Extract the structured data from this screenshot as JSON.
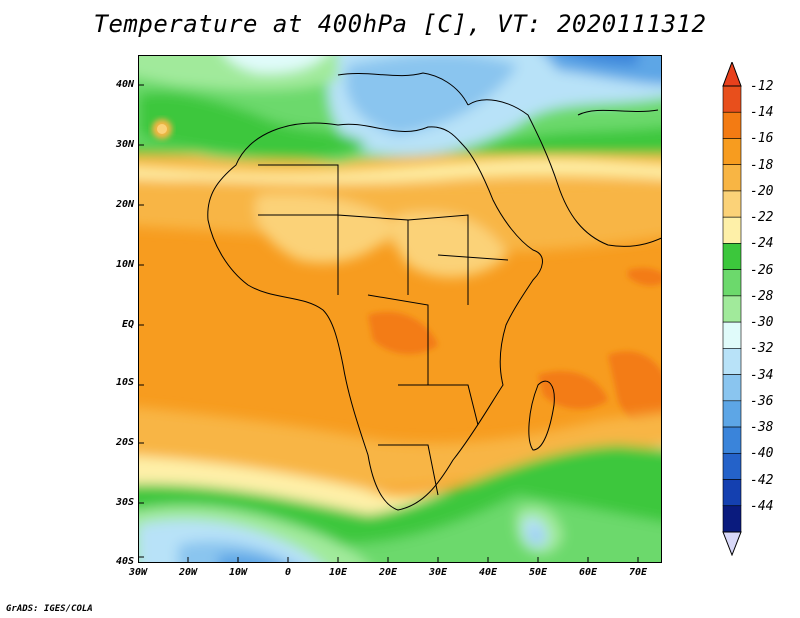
{
  "title": "Temperature at 400hPa [C], VT: 2020111312",
  "credit": "GrADS: IGES/COLA",
  "map": {
    "lat_labels": [
      "40N",
      "30N",
      "20N",
      "10N",
      "EQ",
      "10S",
      "20S",
      "30S",
      "40S"
    ],
    "lon_labels": [
      "30W",
      "20W",
      "10W",
      "0",
      "10E",
      "20E",
      "30E",
      "40E",
      "50E",
      "60E",
      "70E"
    ],
    "lat_range": [
      -40,
      45
    ],
    "lon_range": [
      -30,
      75
    ]
  },
  "colorbar": {
    "labels": [
      "-12",
      "-14",
      "-16",
      "-18",
      "-20",
      "-22",
      "-24",
      "-26",
      "-28",
      "-30",
      "-32",
      "-34",
      "-36",
      "-38",
      "-40",
      "-42",
      "-44"
    ],
    "colors": [
      "#e84f1c",
      "#f37b13",
      "#f79c1f",
      "#f8b544",
      "#fbd278",
      "#fef0a8",
      "#3cc73c",
      "#6cd96c",
      "#a1ea9b",
      "#e0fbfa",
      "#b8e2f8",
      "#8ac5ef",
      "#5da6e6",
      "#3a84da",
      "#2462c9",
      "#1440b0",
      "#0a1b7e"
    ],
    "top_color": "#e8401c",
    "bottom_color": "#d8d8f8"
  }
}
